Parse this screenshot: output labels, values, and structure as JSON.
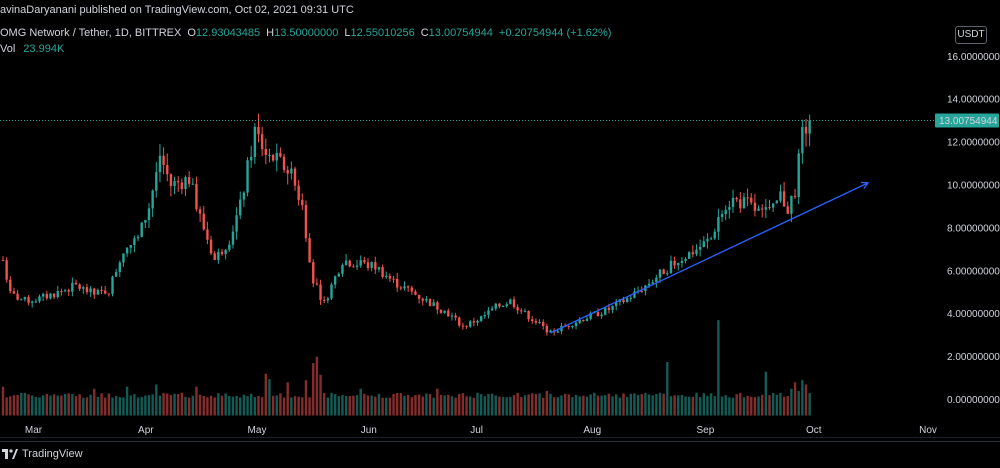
{
  "header": {
    "published_by": "avinaDaryanani published on TradingView.com, Oct 02, 2021 09:31 UTC"
  },
  "legend": {
    "symbol": "OMG Network / Tether, 1D, BITTREX",
    "o_label": "O",
    "o_value": "12.93043485",
    "h_label": "H",
    "h_value": "13.50000000",
    "l_label": "L",
    "l_value": "12.55010256",
    "c_label": "C",
    "c_value": "13.00754944",
    "change": "+0.20754944 (+1.62%)",
    "vol_label": "Vol",
    "vol_value": "23.994K"
  },
  "currency_badge": "USDT",
  "last_price_label": "13.00754944",
  "footer": {
    "brand": "TradingView"
  },
  "colors": {
    "up": "#26a69a",
    "down": "#ef5350",
    "trendline": "#2962ff",
    "last_price_bg": "#26a69a",
    "background": "#000000"
  },
  "chart_data": {
    "type": "candlestick",
    "title": "OMG Network / Tether, 1D, BITTREX",
    "y_axis": {
      "ticks": [
        "16.00000000",
        "14.00000000",
        "12.00000000",
        "10.00000000",
        "8.00000000",
        "6.00000000",
        "4.00000000",
        "2.00000000",
        "0.00000000"
      ],
      "tick_values": [
        16,
        14,
        12,
        10,
        8,
        6,
        4,
        2,
        0
      ]
    },
    "x_axis": {
      "ticks": [
        "Mar",
        "Apr",
        "May",
        "Jun",
        "Jul",
        "Aug",
        "Sep",
        "Oct",
        "Nov"
      ],
      "tick_dates": [
        "2021-03-01",
        "2021-04-01",
        "2021-05-01",
        "2021-06-01",
        "2021-07-01",
        "2021-08-01",
        "2021-09-01",
        "2021-10-01",
        "2021-11-01"
      ]
    },
    "last_price": 13.00754944,
    "trendline": {
      "from": [
        "2021-07-23",
        3.1
      ],
      "to": [
        "2021-10-18",
        10.1
      ]
    },
    "price_anchors": [
      [
        "2021-02-23",
        6.5
      ],
      [
        "2021-02-25",
        4.9
      ],
      [
        "2021-03-01",
        4.6
      ],
      [
        "2021-03-05",
        4.7
      ],
      [
        "2021-03-10",
        5.0
      ],
      [
        "2021-03-15",
        5.3
      ],
      [
        "2021-03-20",
        4.9
      ],
      [
        "2021-03-24",
        5.1
      ],
      [
        "2021-03-28",
        7.0
      ],
      [
        "2021-04-01",
        7.5
      ],
      [
        "2021-04-04",
        9.0
      ],
      [
        "2021-04-07",
        11.4
      ],
      [
        "2021-04-10",
        10.0
      ],
      [
        "2021-04-15",
        10.3
      ],
      [
        "2021-04-18",
        8.5
      ],
      [
        "2021-04-22",
        6.5
      ],
      [
        "2021-04-26",
        7.5
      ],
      [
        "2021-04-29",
        9.0
      ],
      [
        "2021-05-03",
        12.5
      ],
      [
        "2021-05-06",
        11.5
      ],
      [
        "2021-05-10",
        11.0
      ],
      [
        "2021-05-13",
        10.5
      ],
      [
        "2021-05-16",
        9.0
      ],
      [
        "2021-05-19",
        5.5
      ],
      [
        "2021-05-22",
        4.5
      ],
      [
        "2021-05-27",
        6.5
      ],
      [
        "2021-06-01",
        6.3
      ],
      [
        "2021-06-05",
        6.2
      ],
      [
        "2021-06-10",
        5.5
      ],
      [
        "2021-06-15",
        5.0
      ],
      [
        "2021-06-20",
        4.5
      ],
      [
        "2021-06-25",
        4.0
      ],
      [
        "2021-06-29",
        3.4
      ],
      [
        "2021-07-04",
        3.8
      ],
      [
        "2021-07-08",
        4.3
      ],
      [
        "2021-07-12",
        4.6
      ],
      [
        "2021-07-16",
        4.0
      ],
      [
        "2021-07-20",
        3.5
      ],
      [
        "2021-07-23",
        3.1
      ],
      [
        "2021-07-28",
        3.5
      ],
      [
        "2021-08-03",
        3.9
      ],
      [
        "2021-08-08",
        4.2
      ],
      [
        "2021-08-13",
        4.7
      ],
      [
        "2021-08-18",
        5.3
      ],
      [
        "2021-08-23",
        6.0
      ],
      [
        "2021-08-28",
        6.6
      ],
      [
        "2021-09-01",
        7.0
      ],
      [
        "2021-09-05",
        7.5
      ],
      [
        "2021-09-08",
        9.0
      ],
      [
        "2021-09-11",
        9.3
      ],
      [
        "2021-09-15",
        9.1
      ],
      [
        "2021-09-19",
        8.6
      ],
      [
        "2021-09-22",
        8.8
      ],
      [
        "2021-09-24",
        9.5
      ],
      [
        "2021-09-26",
        8.9
      ],
      [
        "2021-09-28",
        9.8
      ],
      [
        "2021-09-30",
        12.3
      ],
      [
        "2021-10-02",
        13.0
      ]
    ],
    "volume_spikes": [
      [
        "2021-02-23",
        0.6
      ],
      [
        "2021-03-20",
        0.5
      ],
      [
        "2021-03-29",
        0.6
      ],
      [
        "2021-04-06",
        0.7
      ],
      [
        "2021-04-17",
        0.6
      ],
      [
        "2021-05-06",
        1.2
      ],
      [
        "2021-05-07",
        0.95
      ],
      [
        "2021-05-12",
        0.8
      ],
      [
        "2021-05-17",
        0.9
      ],
      [
        "2021-05-19",
        1.7
      ],
      [
        "2021-05-20",
        2.0
      ],
      [
        "2021-05-21",
        1.15
      ],
      [
        "2021-06-01",
        0.5
      ],
      [
        "2021-06-22",
        0.5
      ],
      [
        "2021-07-22",
        0.4
      ],
      [
        "2021-08-24",
        1.75
      ],
      [
        "2021-09-07",
        3.7
      ],
      [
        "2021-09-20",
        1.3
      ],
      [
        "2021-09-27",
        0.5
      ],
      [
        "2021-09-28",
        0.8
      ],
      [
        "2021-09-29",
        0.4
      ],
      [
        "2021-09-30",
        0.9
      ],
      [
        "2021-10-01",
        0.7
      ],
      [
        "2021-10-02",
        0.3
      ]
    ],
    "volume_baseline": 0.2,
    "grid": false,
    "legend_position": "top-left"
  }
}
